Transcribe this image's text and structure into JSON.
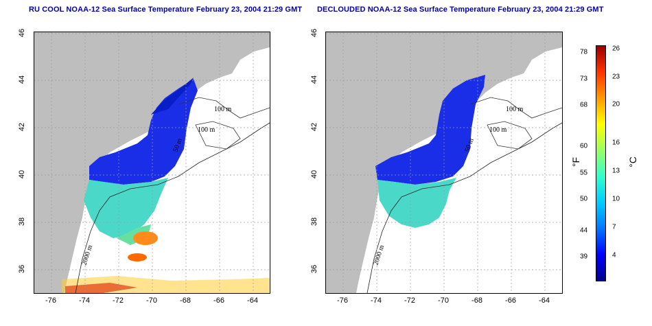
{
  "left_map": {
    "title": "RU COOL NOAA-12 Sea Surface Temperature February 23, 2004 21:29 GMT",
    "contour_labels": [
      "100 m",
      "100 m",
      "50 m",
      "2000 m"
    ]
  },
  "right_map": {
    "title": "DECLOUDED NOAA-12 Sea Surface Temperature February 23, 2004 21:29 GMT",
    "contour_labels": [
      "100 m",
      "100 m",
      "50 m",
      "2000 m"
    ]
  },
  "axes": {
    "x_ticks": [
      "-76",
      "-74",
      "-72",
      "-70",
      "-68",
      "-66",
      "-64"
    ],
    "y_ticks": [
      "46",
      "44",
      "42",
      "40",
      "38",
      "36"
    ]
  },
  "colorbar": {
    "fahrenheit_unit": "°F",
    "celsius_unit": "°C",
    "fahrenheit_ticks": [
      "78",
      "73",
      "68",
      "60",
      "55",
      "50",
      "44",
      "39"
    ],
    "celsius_ticks": [
      "26",
      "23",
      "20",
      "16",
      "13",
      "10",
      "7",
      "4"
    ],
    "colors": [
      "#00008b",
      "#0000ff",
      "#0077ff",
      "#00ccff",
      "#33ffcc",
      "#99ff66",
      "#ffff00",
      "#ff9900",
      "#ff3300",
      "#990000"
    ]
  },
  "colors": {
    "title": "#0000aa",
    "land": "#bebebe",
    "cold_water": "#1a2ee8",
    "grid": "#9a9a9a"
  }
}
